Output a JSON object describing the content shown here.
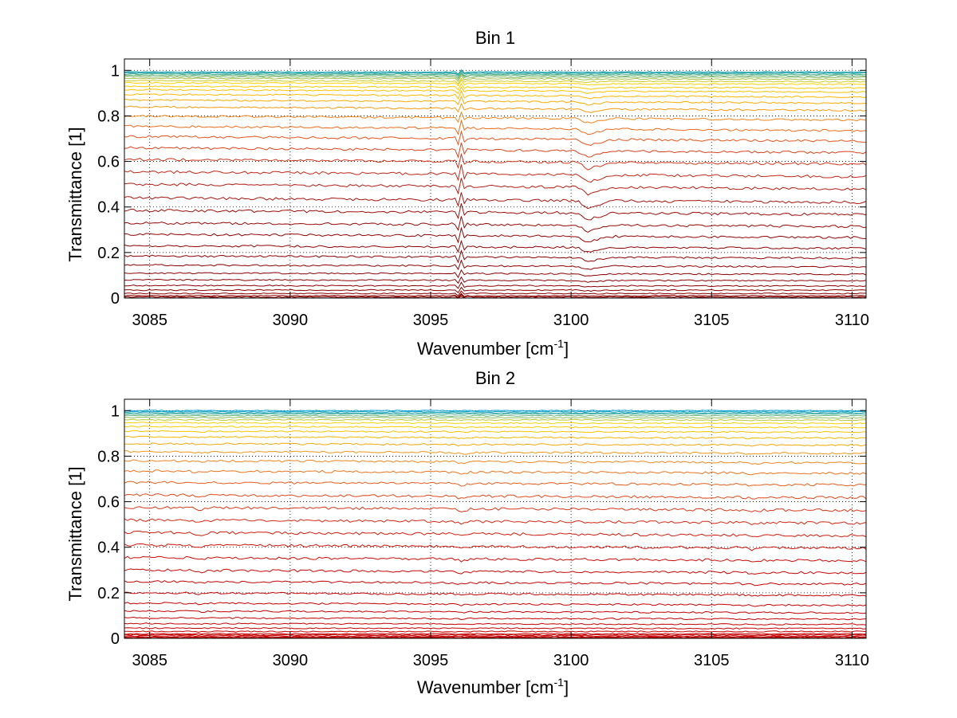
{
  "chart_data": [
    {
      "type": "line",
      "title": "Bin 1",
      "xlabel": "Wavenumber [cm",
      "xlabel_sup": "-1",
      "xlabel_suffix": "]",
      "ylabel": "Transmittance [1]",
      "xlim": [
        3084.1,
        3110.5
      ],
      "ylim": [
        0,
        1.05
      ],
      "xticks": [
        3085,
        3090,
        3095,
        3100,
        3105,
        3110
      ],
      "xtick_labels": [
        "3085",
        "3090",
        "3095",
        "3100",
        "3105",
        "3110"
      ],
      "yticks": [
        0,
        0.2,
        0.4,
        0.6,
        0.8,
        1
      ],
      "ytick_labels": [
        "0",
        "0.2",
        "0.4",
        "0.6",
        "0.8",
        "1"
      ],
      "grid": true,
      "colormap": [
        "#8b0000",
        "#c62c1a",
        "#e5541b",
        "#f5871c",
        "#ffb000",
        "#ffd200",
        "#00a0d8"
      ],
      "features": [
        {
          "x": 3096.0,
          "kind": "sharp-peak",
          "strength": 0.05
        },
        {
          "x": 3100.6,
          "kind": "absorption-dip",
          "strength": 0.03
        },
        {
          "x": 3101.0,
          "kind": "absorption-dip",
          "strength": 0.015
        }
      ],
      "series_levels": [
        0.0,
        0.005,
        0.01,
        0.02,
        0.035,
        0.055,
        0.08,
        0.11,
        0.145,
        0.185,
        0.23,
        0.28,
        0.33,
        0.385,
        0.44,
        0.5,
        0.555,
        0.61,
        0.66,
        0.71,
        0.755,
        0.8,
        0.84,
        0.87,
        0.895,
        0.915,
        0.93,
        0.945,
        0.955,
        0.965,
        0.972,
        0.978,
        0.983,
        0.987,
        0.99,
        0.993
      ],
      "series_slopes": [
        0.0,
        0.0,
        0.0,
        0.0,
        0.0,
        -0.002,
        -0.004,
        -0.006,
        -0.008,
        -0.01,
        -0.012,
        -0.014,
        -0.016,
        -0.018,
        -0.02,
        -0.021,
        -0.022,
        -0.022,
        -0.022,
        -0.021,
        -0.02,
        -0.018,
        -0.016,
        -0.014,
        -0.012,
        -0.01,
        -0.008,
        -0.006,
        -0.005,
        -0.004,
        -0.003,
        -0.002,
        -0.001,
        0.0,
        0.0,
        0.0
      ]
    },
    {
      "type": "line",
      "title": "Bin 2",
      "xlabel": "Wavenumber [cm",
      "xlabel_sup": "-1",
      "xlabel_suffix": "]",
      "ylabel": "Transmittance [1]",
      "xlim": [
        3084.1,
        3110.5
      ],
      "ylim": [
        0,
        1.05
      ],
      "xticks": [
        3085,
        3090,
        3095,
        3100,
        3105,
        3110
      ],
      "xtick_labels": [
        "3085",
        "3090",
        "3095",
        "3100",
        "3105",
        "3110"
      ],
      "yticks": [
        0,
        0.2,
        0.4,
        0.6,
        0.8,
        1
      ],
      "ytick_labels": [
        "0",
        "0.2",
        "0.4",
        "0.6",
        "0.8",
        "1"
      ],
      "grid": true,
      "colormap": [
        "#c40000",
        "#d9361a",
        "#ea6a1e",
        "#f09020",
        "#f7b400",
        "#ffd400",
        "#00a0d8"
      ],
      "features": [
        {
          "x": 3086.8,
          "kind": "small-dip",
          "strength": 0.008
        },
        {
          "x": 3096.1,
          "kind": "small-dip",
          "strength": 0.01
        },
        {
          "x": 3106.5,
          "kind": "small-dip",
          "strength": 0.008
        }
      ],
      "series_levels": [
        0.0,
        0.003,
        0.006,
        0.01,
        0.015,
        0.02,
        0.03,
        0.045,
        0.065,
        0.09,
        0.12,
        0.155,
        0.2,
        0.25,
        0.3,
        0.355,
        0.41,
        0.465,
        0.52,
        0.575,
        0.63,
        0.685,
        0.735,
        0.78,
        0.82,
        0.855,
        0.885,
        0.91,
        0.93,
        0.947,
        0.96,
        0.97,
        0.978,
        0.985,
        0.99,
        0.995,
        1.0
      ],
      "series_slopes": [
        0.0,
        0.0,
        0.0,
        0.0,
        0.0,
        0.0,
        0.0,
        -0.002,
        -0.004,
        -0.006,
        -0.008,
        -0.01,
        -0.011,
        -0.012,
        -0.013,
        -0.014,
        -0.014,
        -0.014,
        -0.014,
        -0.013,
        -0.012,
        -0.011,
        -0.01,
        -0.009,
        -0.008,
        -0.007,
        -0.006,
        -0.005,
        -0.004,
        -0.003,
        -0.002,
        -0.002,
        -0.001,
        0.0,
        0.0,
        0.0,
        0.0
      ]
    }
  ]
}
